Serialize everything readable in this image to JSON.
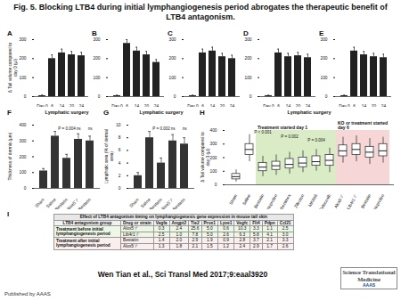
{
  "header": {
    "title": "Fig. 5. Blocking LTB4 during initial lymphangiogenesis period abrogates the therapeutic benefit of LTB4 antagonism."
  },
  "chart_data": [
    {
      "panel": "A",
      "type": "bar",
      "y_label": "Δ Tail volume compared to day 0 (µl)",
      "categories": [
        "Day 0",
        "6",
        "14",
        "20",
        "24"
      ],
      "values": [
        5,
        200,
        230,
        220,
        215
      ],
      "errors": [
        3,
        20,
        20,
        18,
        18
      ],
      "color": "#222222",
      "ylim": [
        0,
        300
      ],
      "yticks": [
        0,
        100,
        200,
        300
      ]
    },
    {
      "panel": "B",
      "type": "bar",
      "categories": [
        "Day 0",
        "6",
        "14",
        "20",
        "24"
      ],
      "values": [
        5,
        280,
        240,
        220,
        180
      ],
      "errors": [
        3,
        20,
        20,
        18,
        15
      ],
      "color": "#222222",
      "ylim": [
        0,
        300
      ],
      "yticks": [
        0,
        100,
        200,
        300
      ]
    },
    {
      "panel": "C",
      "type": "bar",
      "categories": [
        "Day 0",
        "6",
        "14",
        "20",
        "24"
      ],
      "values": [
        5,
        230,
        240,
        210,
        200
      ],
      "errors": [
        3,
        20,
        20,
        18,
        18
      ],
      "color": "#222222",
      "ylim": [
        0,
        300
      ],
      "yticks": [
        0,
        100,
        200,
        300
      ]
    },
    {
      "panel": "D",
      "type": "bar",
      "categories": [
        "Day 0",
        "6",
        "14",
        "20",
        "24"
      ],
      "values": [
        5,
        230,
        210,
        215,
        205
      ],
      "errors": [
        3,
        20,
        18,
        18,
        18
      ],
      "color": "#222222",
      "ylim": [
        0,
        300
      ],
      "yticks": [
        0,
        100,
        200,
        300
      ]
    },
    {
      "panel": "E",
      "type": "bar",
      "categories": [
        "Day 0",
        "6",
        "14",
        "20",
        "24"
      ],
      "values": [
        5,
        240,
        220,
        210,
        205
      ],
      "errors": [
        3,
        20,
        18,
        18,
        18
      ],
      "color": "#222222",
      "ylim": [
        0,
        300
      ],
      "yticks": [
        0,
        100,
        200,
        300
      ]
    },
    {
      "panel": "F",
      "type": "bar",
      "title": "Lymphatic surgery",
      "y_label": "Thickness of dermis (µm)",
      "categories": [
        "Sham",
        "Saline",
        "Bestatin",
        "Alox5⁻/⁻",
        "Bestatin"
      ],
      "values": [
        110,
        330,
        190,
        310,
        300
      ],
      "errors": [
        15,
        30,
        25,
        35,
        30
      ],
      "color": "#333333",
      "ylim": [
        0,
        400
      ],
      "yticks": [
        0,
        100,
        200,
        300,
        400
      ],
      "annotations": [
        {
          "label": "P = 0.004",
          "x": 2,
          "y": 375
        },
        {
          "label": "ns",
          "x": 3,
          "y": 375
        },
        {
          "label": "ns",
          "x": 4,
          "y": 375
        }
      ]
    },
    {
      "panel": "G",
      "type": "bar",
      "title": "Lymphatic surgery",
      "y_label": "Lymphatic area (% of dermal area)",
      "categories": [
        "Sham",
        "Saline",
        "Bestatin",
        "Alox5⁻/⁻",
        "Bestatin"
      ],
      "values": [
        2,
        8,
        4,
        7.5,
        7
      ],
      "errors": [
        0.5,
        1,
        0.8,
        1,
        1
      ],
      "color": "#333333",
      "ylim": [
        0,
        10
      ],
      "yticks": [
        0,
        2,
        4,
        6,
        8,
        10
      ],
      "annotations": [
        {
          "label": "P = 0.002",
          "x": 2,
          "y": 9.5
        },
        {
          "label": "ns",
          "x": 3,
          "y": 9.5
        },
        {
          "label": "ns",
          "x": 4,
          "y": 9.5
        }
      ]
    },
    {
      "panel": "H",
      "type": "box",
      "title": "Lymphatic surgery",
      "y_label": "Δ Tail volume compared to day 0 (µl)",
      "categories": [
        "Sham",
        "Saline",
        "Bestatin",
        "Ketoprofen",
        "Ubenimex",
        "Zileuton",
        "MK886",
        "Celecoxib",
        "Alox5⁻/⁻",
        "Ltb4r1⁻/⁻",
        "Bestatin",
        "Ketoprofen"
      ],
      "boxes": [
        [
          20,
          40,
          60,
          80,
          110
        ],
        [
          170,
          220,
          260,
          300,
          370
        ],
        [
          60,
          100,
          130,
          160,
          210
        ],
        [
          70,
          110,
          140,
          170,
          220
        ],
        [
          80,
          120,
          150,
          190,
          240
        ],
        [
          90,
          130,
          160,
          200,
          250
        ],
        [
          100,
          140,
          170,
          210,
          260
        ],
        [
          90,
          140,
          180,
          220,
          270
        ],
        [
          160,
          210,
          250,
          290,
          350
        ],
        [
          170,
          220,
          260,
          300,
          360
        ],
        [
          150,
          200,
          240,
          280,
          340
        ],
        [
          160,
          210,
          250,
          300,
          350
        ]
      ],
      "groups": [
        null,
        null,
        "Treatment started day 1",
        "Treatment started day 1",
        "Treatment started day 1",
        "Treatment started day 1",
        "Treatment started day 1",
        "Treatment started day 1",
        "KO or treatment started day 6",
        "KO or treatment started day 6",
        "KO or treatment started day 6",
        "KO or treatment started day 6"
      ],
      "group_colors": {
        "Treatment started day 1": "#d9ecc6",
        "KO or treatment started day 6": "#f6d6d6"
      },
      "ylim": [
        0,
        400
      ],
      "yticks": [
        0,
        100,
        200,
        300,
        400
      ],
      "annotations": [
        {
          "label": "P < 0.001",
          "x": 2,
          "y": 385
        },
        {
          "label": "P = 0.002",
          "x": 4,
          "y": 355
        },
        {
          "label": "P = 0.004",
          "x": 6,
          "y": 325
        }
      ]
    }
  ],
  "table": {
    "panel": "I",
    "title": "Effect of LTB4 antagonism timing on lymphangiogenesis gene expression in mouse tail skin",
    "columns": [
      "LTB4 antagonism group",
      "Drug or strain",
      "Vegfa",
      "Angpt2",
      "Tie2",
      "Prox1",
      "Lyve1",
      "Vegfc",
      "Flt4",
      "Pdpn",
      "Ccl21"
    ],
    "groups": [
      {
        "label": "Treatment before initial lymphangiogenesis period",
        "rows": [
          [
            "Alox5⁻/⁻",
            "0.3",
            "2.4",
            "25.6",
            "5.0",
            "0.6",
            "10.3",
            "3.3",
            "1.1",
            "2.5"
          ],
          [
            "Ltb4r1⁻/⁻",
            "2.5",
            "1.0",
            "7.8",
            "5.0",
            "2.6",
            "6.3",
            "5.8",
            "4.1",
            "3.0"
          ]
        ]
      },
      {
        "label": "Treatment after initial lymphangiogenesis period",
        "rows": [
          [
            "Bestatin",
            "1.4",
            "2.0",
            "2.9",
            "1.9",
            "0.9",
            "2.8",
            "3.7",
            "2.1",
            "3.3"
          ],
          [
            "Alox5⁻/⁻",
            "1.3",
            "1.8",
            "2.1",
            "1.5",
            "1.2",
            "2.4",
            "2.9",
            "1.7",
            "2.6"
          ]
        ]
      }
    ]
  },
  "footer": {
    "citation": "Wen Tian et al., Sci Transl Med 2017;9:eaal3920",
    "publisher": "Published by AAAS",
    "journal": "Science Translational Medicine",
    "organization": "AAAS"
  }
}
